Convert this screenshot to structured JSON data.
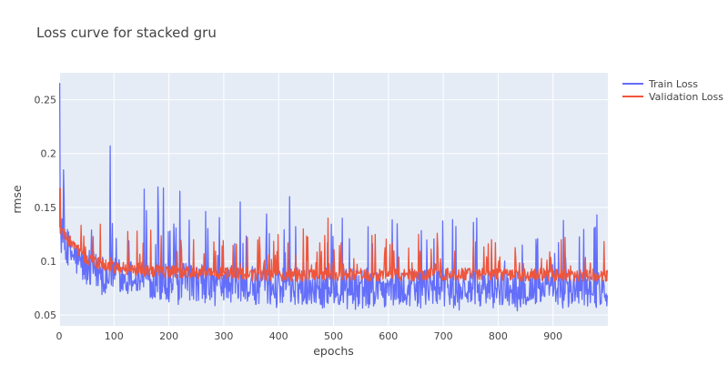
{
  "chart_data": {
    "type": "line",
    "title": "Loss curve for stacked gru",
    "xlabel": "epochs",
    "ylabel": "rmse",
    "xlim": [
      0,
      1000
    ],
    "ylim": [
      0.04,
      0.275
    ],
    "x_ticks": [
      0,
      100,
      200,
      300,
      400,
      500,
      600,
      700,
      800,
      900
    ],
    "y_ticks": [
      0.05,
      0.1,
      0.15,
      0.2,
      0.25
    ],
    "grid": true,
    "legend_position": "top-right",
    "n_epochs": 1000,
    "series": [
      {
        "name": "Train Loss",
        "color": "#636efa",
        "start_value": 0.265,
        "mean_trend": [
          {
            "x": 0,
            "y": 0.13
          },
          {
            "x": 20,
            "y": 0.11
          },
          {
            "x": 50,
            "y": 0.095
          },
          {
            "x": 100,
            "y": 0.088
          },
          {
            "x": 200,
            "y": 0.083
          },
          {
            "x": 400,
            "y": 0.079
          },
          {
            "x": 700,
            "y": 0.077
          },
          {
            "x": 1000,
            "y": 0.076
          }
        ],
        "range_min": 0.054,
        "notable_peaks": [
          {
            "x": 1,
            "y": 0.265
          },
          {
            "x": 93,
            "y": 0.207
          },
          {
            "x": 155,
            "y": 0.167
          },
          {
            "x": 180,
            "y": 0.169
          },
          {
            "x": 190,
            "y": 0.168
          },
          {
            "x": 220,
            "y": 0.165
          },
          {
            "x": 330,
            "y": 0.155
          },
          {
            "x": 420,
            "y": 0.16
          },
          {
            "x": 980,
            "y": 0.143
          }
        ]
      },
      {
        "name": "Validation Loss",
        "color": "#ef553b",
        "start_value": 0.168,
        "mean_trend": [
          {
            "x": 0,
            "y": 0.13
          },
          {
            "x": 20,
            "y": 0.118
          },
          {
            "x": 50,
            "y": 0.102
          },
          {
            "x": 100,
            "y": 0.094
          },
          {
            "x": 200,
            "y": 0.09
          },
          {
            "x": 400,
            "y": 0.087
          },
          {
            "x": 700,
            "y": 0.088
          },
          {
            "x": 1000,
            "y": 0.087
          }
        ],
        "range_min": 0.078,
        "notable_peaks": [
          {
            "x": 2,
            "y": 0.168
          },
          {
            "x": 490,
            "y": 0.14
          },
          {
            "x": 445,
            "y": 0.13
          },
          {
            "x": 655,
            "y": 0.125
          },
          {
            "x": 915,
            "y": 0.12
          }
        ]
      }
    ]
  }
}
